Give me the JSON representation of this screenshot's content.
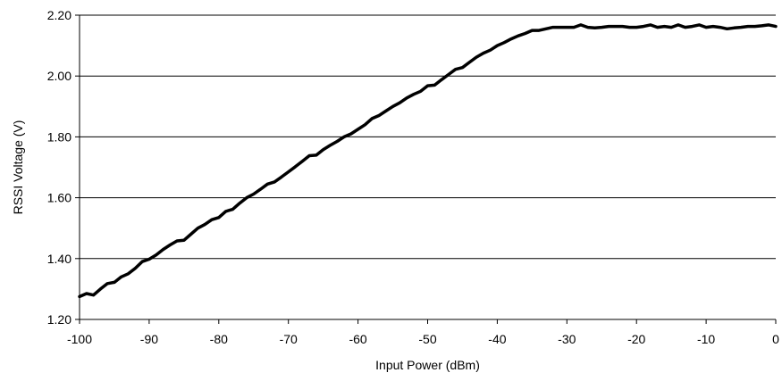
{
  "chart_data": {
    "type": "line",
    "title": "",
    "xlabel": "Input Power (dBm)",
    "ylabel": "RSSI Voltage (V)",
    "xlim": [
      -100,
      0
    ],
    "ylim": [
      1.2,
      2.2
    ],
    "x_ticks": [
      -100,
      -90,
      -80,
      -70,
      -60,
      -50,
      -40,
      -30,
      -20,
      -10,
      0
    ],
    "y_ticks": [
      1.2,
      1.4,
      1.6,
      1.8,
      2.0,
      2.2
    ],
    "x_tick_labels": [
      "-100",
      "-90",
      "-80",
      "-70",
      "-60",
      "-50",
      "-40",
      "-30",
      "-20",
      "-10",
      "0"
    ],
    "y_tick_labels": [
      "1.20",
      "1.40",
      "1.60",
      "1.80",
      "2.00",
      "2.20"
    ],
    "grid": "horizontal",
    "legend": "none",
    "line_color": "#000000",
    "series": [
      {
        "x": [
          -100,
          -99,
          -98,
          -97,
          -96,
          -95,
          -94,
          -93,
          -92,
          -91,
          -90,
          -89,
          -88,
          -87,
          -86,
          -85,
          -84,
          -83,
          -82,
          -81,
          -80,
          -79,
          -78,
          -77,
          -76,
          -75,
          -74,
          -73,
          -72,
          -71,
          -70,
          -69,
          -68,
          -67,
          -66,
          -65,
          -64,
          -63,
          -62,
          -61,
          -60,
          -59,
          -58,
          -57,
          -56,
          -55,
          -54,
          -53,
          -52,
          -51,
          -50,
          -49,
          -48,
          -47,
          -46,
          -45,
          -44,
          -43,
          -42,
          -41,
          -40,
          -39,
          -38,
          -37,
          -36,
          -35,
          -34,
          -33,
          -32,
          -31,
          -30,
          -29,
          -28,
          -27,
          -26,
          -25,
          -24,
          -23,
          -22,
          -21,
          -20,
          -19,
          -18,
          -17,
          -16,
          -15,
          -14,
          -13,
          -12,
          -11,
          -10,
          -9,
          -8,
          -7,
          -6,
          -5,
          -4,
          -3,
          -2,
          -1,
          0
        ],
        "values": [
          1.275,
          1.285,
          1.28,
          1.3,
          1.318,
          1.322,
          1.34,
          1.35,
          1.368,
          1.39,
          1.398,
          1.412,
          1.43,
          1.445,
          1.458,
          1.46,
          1.48,
          1.5,
          1.512,
          1.528,
          1.535,
          1.555,
          1.562,
          1.582,
          1.6,
          1.612,
          1.628,
          1.645,
          1.652,
          1.668,
          1.685,
          1.702,
          1.72,
          1.738,
          1.74,
          1.758,
          1.772,
          1.785,
          1.8,
          1.81,
          1.825,
          1.84,
          1.86,
          1.87,
          1.885,
          1.9,
          1.912,
          1.928,
          1.94,
          1.95,
          1.968,
          1.97,
          1.988,
          2.005,
          2.022,
          2.028,
          2.045,
          2.062,
          2.075,
          2.085,
          2.1,
          2.11,
          2.122,
          2.132,
          2.14,
          2.15,
          2.15,
          2.155,
          2.16,
          2.16,
          2.16,
          2.16,
          2.168,
          2.16,
          2.158,
          2.16,
          2.163,
          2.163,
          2.163,
          2.16,
          2.16,
          2.163,
          2.168,
          2.16,
          2.163,
          2.16,
          2.168,
          2.16,
          2.163,
          2.168,
          2.16,
          2.163,
          2.16,
          2.155,
          2.158,
          2.16,
          2.163,
          2.163,
          2.165,
          2.168,
          2.163
        ]
      }
    ]
  }
}
